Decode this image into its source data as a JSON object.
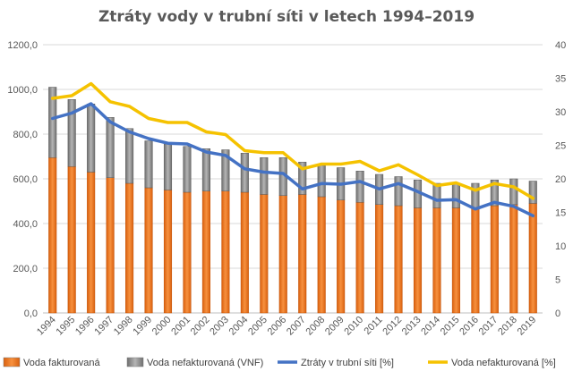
{
  "chart_data": {
    "type": "bar",
    "title": "Ztráty vody v trubní síti v letech 1994–2019",
    "categories": [
      "1994",
      "1995",
      "1996",
      "1997",
      "1998",
      "1999",
      "2000",
      "2001",
      "2002",
      "2003",
      "2004",
      "2005",
      "2006",
      "2007",
      "2008",
      "2009",
      "2010",
      "2011",
      "2012",
      "2013",
      "2014",
      "2015",
      "2016",
      "2017",
      "2018",
      "2019"
    ],
    "series": [
      {
        "name": "Voda fakturovaná",
        "kind": "bar-stacked",
        "axis": "left",
        "color": "#E8731A",
        "values": [
          695,
          655,
          630,
          605,
          580,
          560,
          550,
          540,
          545,
          545,
          540,
          530,
          525,
          530,
          520,
          505,
          495,
          485,
          480,
          470,
          470,
          470,
          470,
          480,
          485,
          490
        ]
      },
      {
        "name": "Voda nefakturovaná (VNF)",
        "kind": "bar-stacked",
        "axis": "left",
        "color": "#8C8C8C",
        "values": [
          315,
          300,
          305,
          270,
          245,
          210,
          205,
          205,
          190,
          185,
          175,
          165,
          170,
          145,
          140,
          145,
          140,
          135,
          130,
          125,
          110,
          110,
          110,
          115,
          115,
          100
        ]
      },
      {
        "name": "Ztráty v trubní síti [%]",
        "kind": "line",
        "axis": "right",
        "color": "#4472C4",
        "values": [
          29.0,
          29.8,
          31.2,
          28.5,
          27.0,
          26.0,
          25.3,
          25.2,
          24.0,
          23.5,
          21.5,
          21.0,
          20.8,
          18.5,
          19.3,
          19.2,
          19.6,
          18.5,
          19.3,
          18.1,
          16.8,
          16.9,
          15.5,
          16.5,
          15.9,
          14.5
        ]
      },
      {
        "name": "Voda nefakturovaná [%]",
        "kind": "line",
        "axis": "right",
        "color": "#F5C200",
        "values": [
          32.0,
          32.4,
          34.2,
          31.5,
          30.8,
          29.0,
          28.4,
          28.4,
          27.0,
          26.6,
          24.2,
          23.9,
          23.9,
          21.5,
          22.2,
          22.2,
          22.6,
          21.2,
          22.1,
          20.6,
          19.0,
          19.4,
          18.3,
          19.3,
          18.8,
          17.1
        ]
      }
    ],
    "y_left": {
      "ylim": [
        0,
        1200
      ],
      "ticks": [
        "0,0",
        "200,0",
        "400,0",
        "600,0",
        "800,0",
        "1000,0",
        "1200,0"
      ]
    },
    "y_right": {
      "ylim": [
        0,
        40
      ],
      "ticks": [
        "0",
        "5",
        "10",
        "15",
        "20",
        "25",
        "30",
        "35",
        "40"
      ]
    },
    "grid": true,
    "legend": "bottom"
  }
}
